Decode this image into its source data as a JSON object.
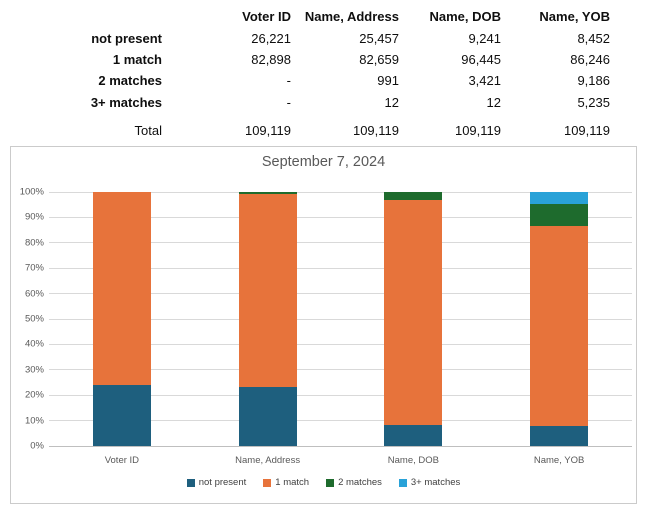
{
  "table": {
    "columns": [
      "Voter ID",
      "Name, Address",
      "Name, DOB",
      "Name, YOB"
    ],
    "rows": [
      {
        "label": "not present",
        "values": [
          "26,221",
          "25,457",
          "9,241",
          "8,452"
        ]
      },
      {
        "label": "1 match",
        "values": [
          "82,898",
          "82,659",
          "96,445",
          "86,246"
        ]
      },
      {
        "label": "2 matches",
        "values": [
          "-",
          "991",
          "3,421",
          "9,186"
        ]
      },
      {
        "label": "3+ matches",
        "values": [
          "-",
          "12",
          "12",
          "5,235"
        ]
      }
    ],
    "total_row": {
      "label": "Total",
      "values": [
        "109,119",
        "109,119",
        "109,119",
        "109,119"
      ]
    }
  },
  "chart_data": {
    "type": "bar",
    "stacked": true,
    "percent": true,
    "title": "September 7, 2024",
    "categories": [
      "Voter ID",
      "Name, Address",
      "Name, DOB",
      "Name, YOB"
    ],
    "series": [
      {
        "name": "not present",
        "color": "#1E5F7E",
        "values": [
          26221,
          25457,
          9241,
          8452
        ]
      },
      {
        "name": "1 match",
        "color": "#E7733B",
        "values": [
          82898,
          82659,
          96445,
          86246
        ]
      },
      {
        "name": "2 matches",
        "color": "#1E6B2D",
        "values": [
          0,
          991,
          3421,
          9186
        ]
      },
      {
        "name": "3+ matches",
        "color": "#29A2D8",
        "values": [
          0,
          12,
          12,
          5235
        ]
      }
    ],
    "column_total": 109119,
    "y_ticks": [
      "0%",
      "10%",
      "20%",
      "30%",
      "40%",
      "50%",
      "60%",
      "70%",
      "80%",
      "90%",
      "100%"
    ],
    "ylim": [
      0,
      100
    ],
    "grid": true,
    "legend_position": "bottom",
    "colors": {
      "title_text": "#595959",
      "axis_text": "#595959",
      "gridline": "#D9D9D9",
      "axis_line": "#BFBFBF",
      "panel_border": "#CBCBCB"
    }
  }
}
